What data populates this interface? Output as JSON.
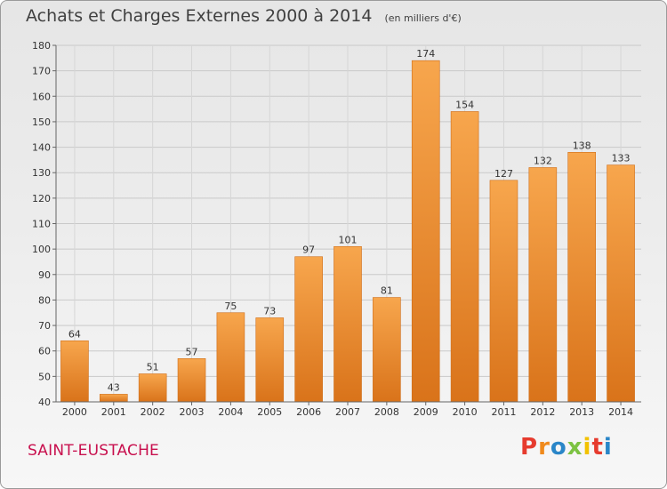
{
  "title": "Achats et Charges Externes 2000 à 2014",
  "unit": "(en milliers d'€)",
  "commune": "SAINT-EUSTACHE",
  "logo": {
    "text": "Proxiti",
    "colors": [
      "#e63b2e",
      "#f08a1c",
      "#2a86c8",
      "#7cc242",
      "#f2c200",
      "#e63b2e",
      "#2a86c8"
    ]
  },
  "colors": {
    "bar_light": "#f7a64d",
    "bar_dark": "#d9731a",
    "commune": "#c8104e"
  },
  "chart_data": {
    "type": "bar",
    "title": "Achats et Charges Externes 2000 à 2014",
    "subtitle": "(en milliers d'€)",
    "xlabel": "",
    "ylabel": "",
    "categories": [
      "2000",
      "2001",
      "2002",
      "2003",
      "2004",
      "2005",
      "2006",
      "2007",
      "2008",
      "2009",
      "2010",
      "2011",
      "2012",
      "2013",
      "2014"
    ],
    "values": [
      64,
      43,
      51,
      57,
      75,
      73,
      97,
      101,
      81,
      174,
      154,
      127,
      132,
      138,
      133
    ],
    "ylim": [
      40,
      180
    ],
    "yticks": [
      40,
      50,
      60,
      70,
      80,
      90,
      100,
      110,
      120,
      130,
      140,
      150,
      160,
      170,
      180
    ],
    "grid": true,
    "legend": "none"
  }
}
